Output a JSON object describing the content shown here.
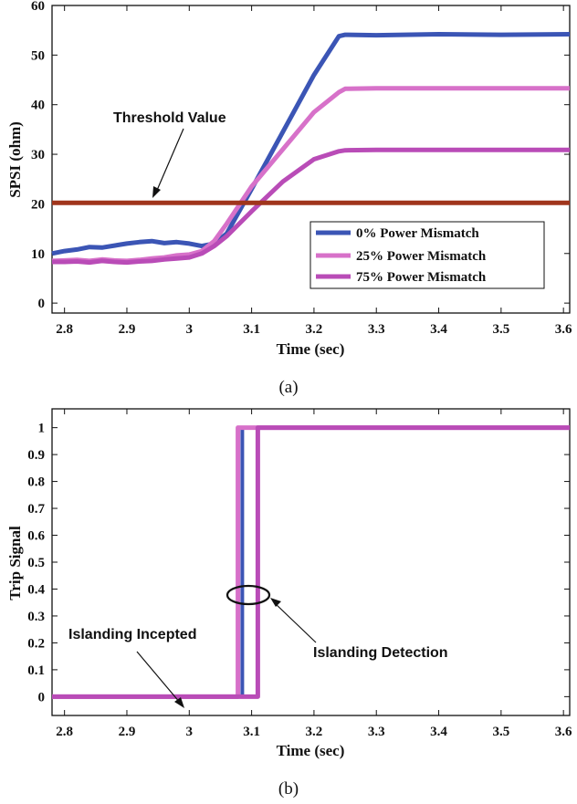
{
  "chart_data": [
    {
      "type": "line",
      "caption": "(a)",
      "xlabel": "Time (sec)",
      "ylabel": "SPSI (ohm)",
      "xlim": [
        2.78,
        3.61
      ],
      "ylim": [
        -2,
        60
      ],
      "xticks": [
        2.8,
        2.9,
        3,
        3.1,
        3.2,
        3.3,
        3.4,
        3.5,
        3.6
      ],
      "yticks": [
        0,
        10,
        20,
        30,
        40,
        50,
        60
      ],
      "annotation": "Threshold Value",
      "series": [
        {
          "name": "0% Power Mismatch",
          "color": "#3b55b5",
          "x": [
            2.78,
            2.8,
            2.82,
            2.84,
            2.86,
            2.88,
            2.9,
            2.92,
            2.94,
            2.96,
            2.98,
            3.0,
            3.02,
            3.04,
            3.06,
            3.1,
            3.15,
            3.2,
            3.24,
            3.25,
            3.3,
            3.4,
            3.5,
            3.61
          ],
          "y": [
            10,
            10.5,
            10.8,
            11.3,
            11.2,
            11.6,
            12.0,
            12.3,
            12.5,
            12.1,
            12.3,
            12.0,
            11.5,
            12.0,
            14.0,
            23.0,
            34.5,
            46.0,
            53.8,
            54.1,
            54.0,
            54.2,
            54.1,
            54.2
          ]
        },
        {
          "name": "25% Power Mismatch",
          "color": "#d771c9",
          "x": [
            2.78,
            2.8,
            2.82,
            2.84,
            2.86,
            2.88,
            2.9,
            2.92,
            2.94,
            2.96,
            2.98,
            3.0,
            3.02,
            3.04,
            3.06,
            3.1,
            3.15,
            3.2,
            3.24,
            3.25,
            3.3,
            3.4,
            3.5,
            3.61
          ],
          "y": [
            8.5,
            8.6,
            8.7,
            8.5,
            8.8,
            8.6,
            8.5,
            8.7,
            9.0,
            9.2,
            9.6,
            9.8,
            10.5,
            12.5,
            16.0,
            23.5,
            31.0,
            38.5,
            42.5,
            43.2,
            43.3,
            43.3,
            43.3,
            43.3
          ]
        },
        {
          "name": "75% Power Mismatch",
          "color": "#b94cb7",
          "x": [
            2.78,
            2.8,
            2.82,
            2.84,
            2.86,
            2.88,
            2.9,
            2.92,
            2.94,
            2.96,
            2.98,
            3.0,
            3.02,
            3.04,
            3.06,
            3.1,
            3.15,
            3.2,
            3.24,
            3.25,
            3.3,
            3.4,
            3.5,
            3.61
          ],
          "y": [
            8.3,
            8.3,
            8.4,
            8.2,
            8.5,
            8.3,
            8.2,
            8.4,
            8.5,
            8.8,
            9.0,
            9.2,
            10.0,
            11.5,
            13.5,
            18.5,
            24.5,
            29.0,
            30.6,
            30.8,
            30.9,
            30.9,
            30.9,
            30.9
          ]
        },
        {
          "name": "Threshold",
          "color": "#a0351c",
          "x": [
            2.78,
            3.61
          ],
          "y": [
            20.2,
            20.2
          ]
        }
      ],
      "legend": [
        "0% Power Mismatch",
        "25% Power Mismatch",
        "75% Power Mismatch"
      ],
      "legend_position": "bottom-right"
    },
    {
      "type": "line",
      "caption": "(b)",
      "xlabel": "Time (sec)",
      "ylabel": "Trip Signal",
      "xlim": [
        2.78,
        3.61
      ],
      "ylim": [
        -0.07,
        1.07
      ],
      "xticks": [
        2.8,
        2.9,
        3,
        3.1,
        3.2,
        3.3,
        3.4,
        3.5,
        3.6
      ],
      "yticks": [
        0,
        0.1,
        0.2,
        0.3,
        0.4,
        0.5,
        0.6,
        0.7,
        0.8,
        0.9,
        1
      ],
      "annotations": [
        "Islanding Incepted",
        "Islanding Detection"
      ],
      "series": [
        {
          "name": "0% Power Mismatch",
          "color": "#3b55b5",
          "x": [
            2.78,
            3.085,
            3.085,
            3.61
          ],
          "y": [
            0,
            0,
            1,
            1
          ]
        },
        {
          "name": "25% Power Mismatch",
          "color": "#d771c9",
          "x": [
            2.78,
            3.078,
            3.078,
            3.61
          ],
          "y": [
            0,
            0,
            1,
            1
          ]
        },
        {
          "name": "75% Power Mismatch",
          "color": "#b94cb7",
          "x": [
            2.78,
            3.11,
            3.11,
            3.61
          ],
          "y": [
            0,
            0,
            1,
            1
          ]
        }
      ]
    }
  ]
}
